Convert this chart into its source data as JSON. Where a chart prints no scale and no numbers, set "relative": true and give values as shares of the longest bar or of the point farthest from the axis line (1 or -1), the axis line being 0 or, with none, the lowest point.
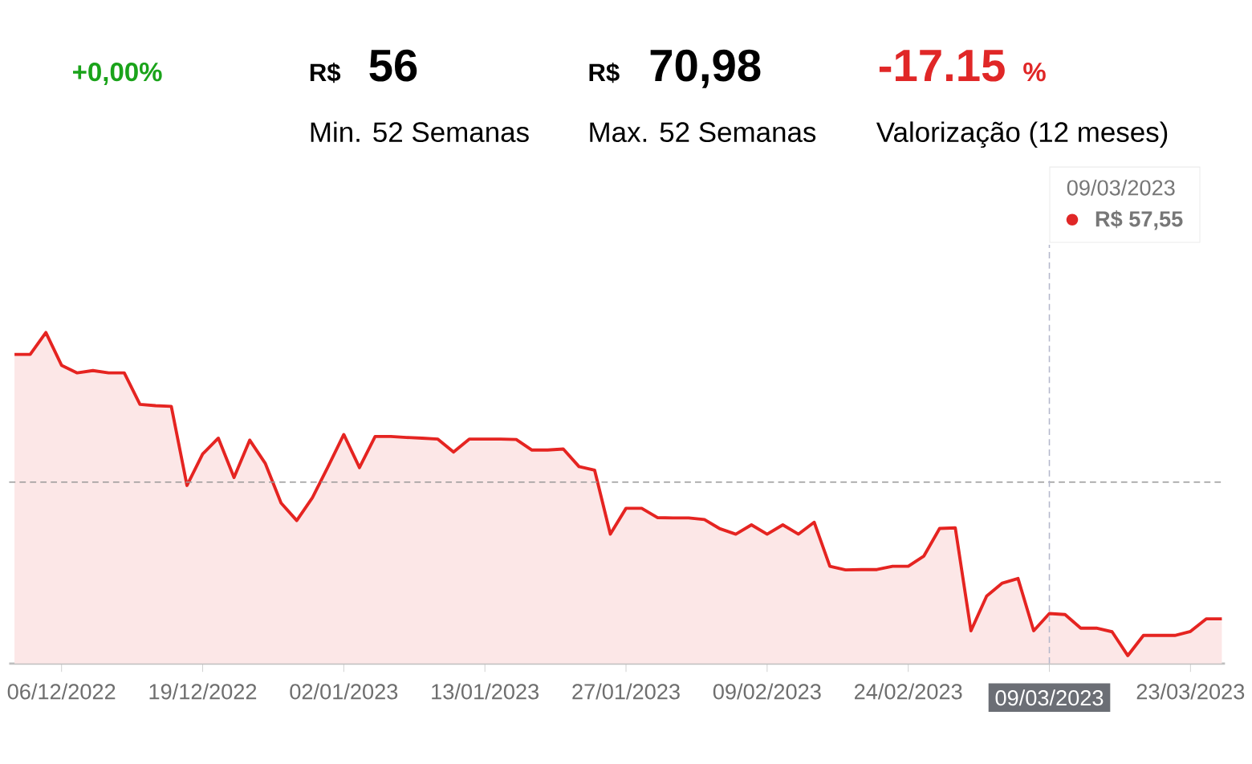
{
  "chart_data": {
    "type": "area",
    "relative": true,
    "color": "#e52421",
    "categories": [
      null,
      null,
      null,
      "06/12/2022",
      null,
      null,
      null,
      null,
      null,
      null,
      null,
      null,
      "19/12/2022",
      null,
      null,
      null,
      null,
      null,
      null,
      null,
      null,
      "02/01/2023",
      null,
      null,
      null,
      null,
      null,
      null,
      null,
      null,
      "13/01/2023",
      null,
      null,
      null,
      null,
      null,
      null,
      null,
      null,
      "27/01/2023",
      null,
      null,
      null,
      null,
      null,
      null,
      null,
      null,
      "09/02/2023",
      null,
      null,
      null,
      null,
      null,
      null,
      null,
      null,
      "24/02/2023",
      null,
      null,
      null,
      null,
      null,
      null,
      null,
      null,
      "09/03/2023",
      null,
      null,
      null,
      null,
      null,
      null,
      null,
      null,
      "23/03/2023",
      null,
      null
    ],
    "values": [
      0.934,
      0.934,
      1,
      0.901,
      0.878,
      0.885,
      0.878,
      0.878,
      0.783,
      0.779,
      0.777,
      0.538,
      0.633,
      0.681,
      0.562,
      0.675,
      0.604,
      0.485,
      0.432,
      0.501,
      0.595,
      0.692,
      0.592,
      0.686,
      0.686,
      0.683,
      0.681,
      0.678,
      0.639,
      0.678,
      0.678,
      0.678,
      0.677,
      0.645,
      0.645,
      0.648,
      0.595,
      0.584,
      0.391,
      0.469,
      0.469,
      0.441,
      0.44,
      0.44,
      0.435,
      0.407,
      0.391,
      0.419,
      0.391,
      0.419,
      0.391,
      0.427,
      0.294,
      0.283,
      0.284,
      0.284,
      0.294,
      0.294,
      0.325,
      0.408,
      0.41,
      0.099,
      0.204,
      0.243,
      0.257,
      0.099,
      0.151,
      0.148,
      0.107,
      0.107,
      0.096,
      0.024,
      0.085,
      0.085,
      0.085,
      0.097,
      0.135,
      0.135
    ],
    "ref_lines": [
      {
        "axis": "y",
        "value": 0.548,
        "color": "#999999",
        "line_style": "dashed"
      },
      {
        "axis": "x",
        "value": "09/03/2023",
        "color": "#b4b8cc",
        "line_style": "dashed"
      }
    ],
    "annotations": [
      "+0,00%",
      "R$",
      "56",
      "Min. 52 Semanas",
      "R$",
      "70,98",
      "Max. 52 Semanas",
      "-17.15",
      "%",
      "Valorização (12 meses)",
      "09/03/2023",
      "R$ 57,55"
    ]
  }
}
